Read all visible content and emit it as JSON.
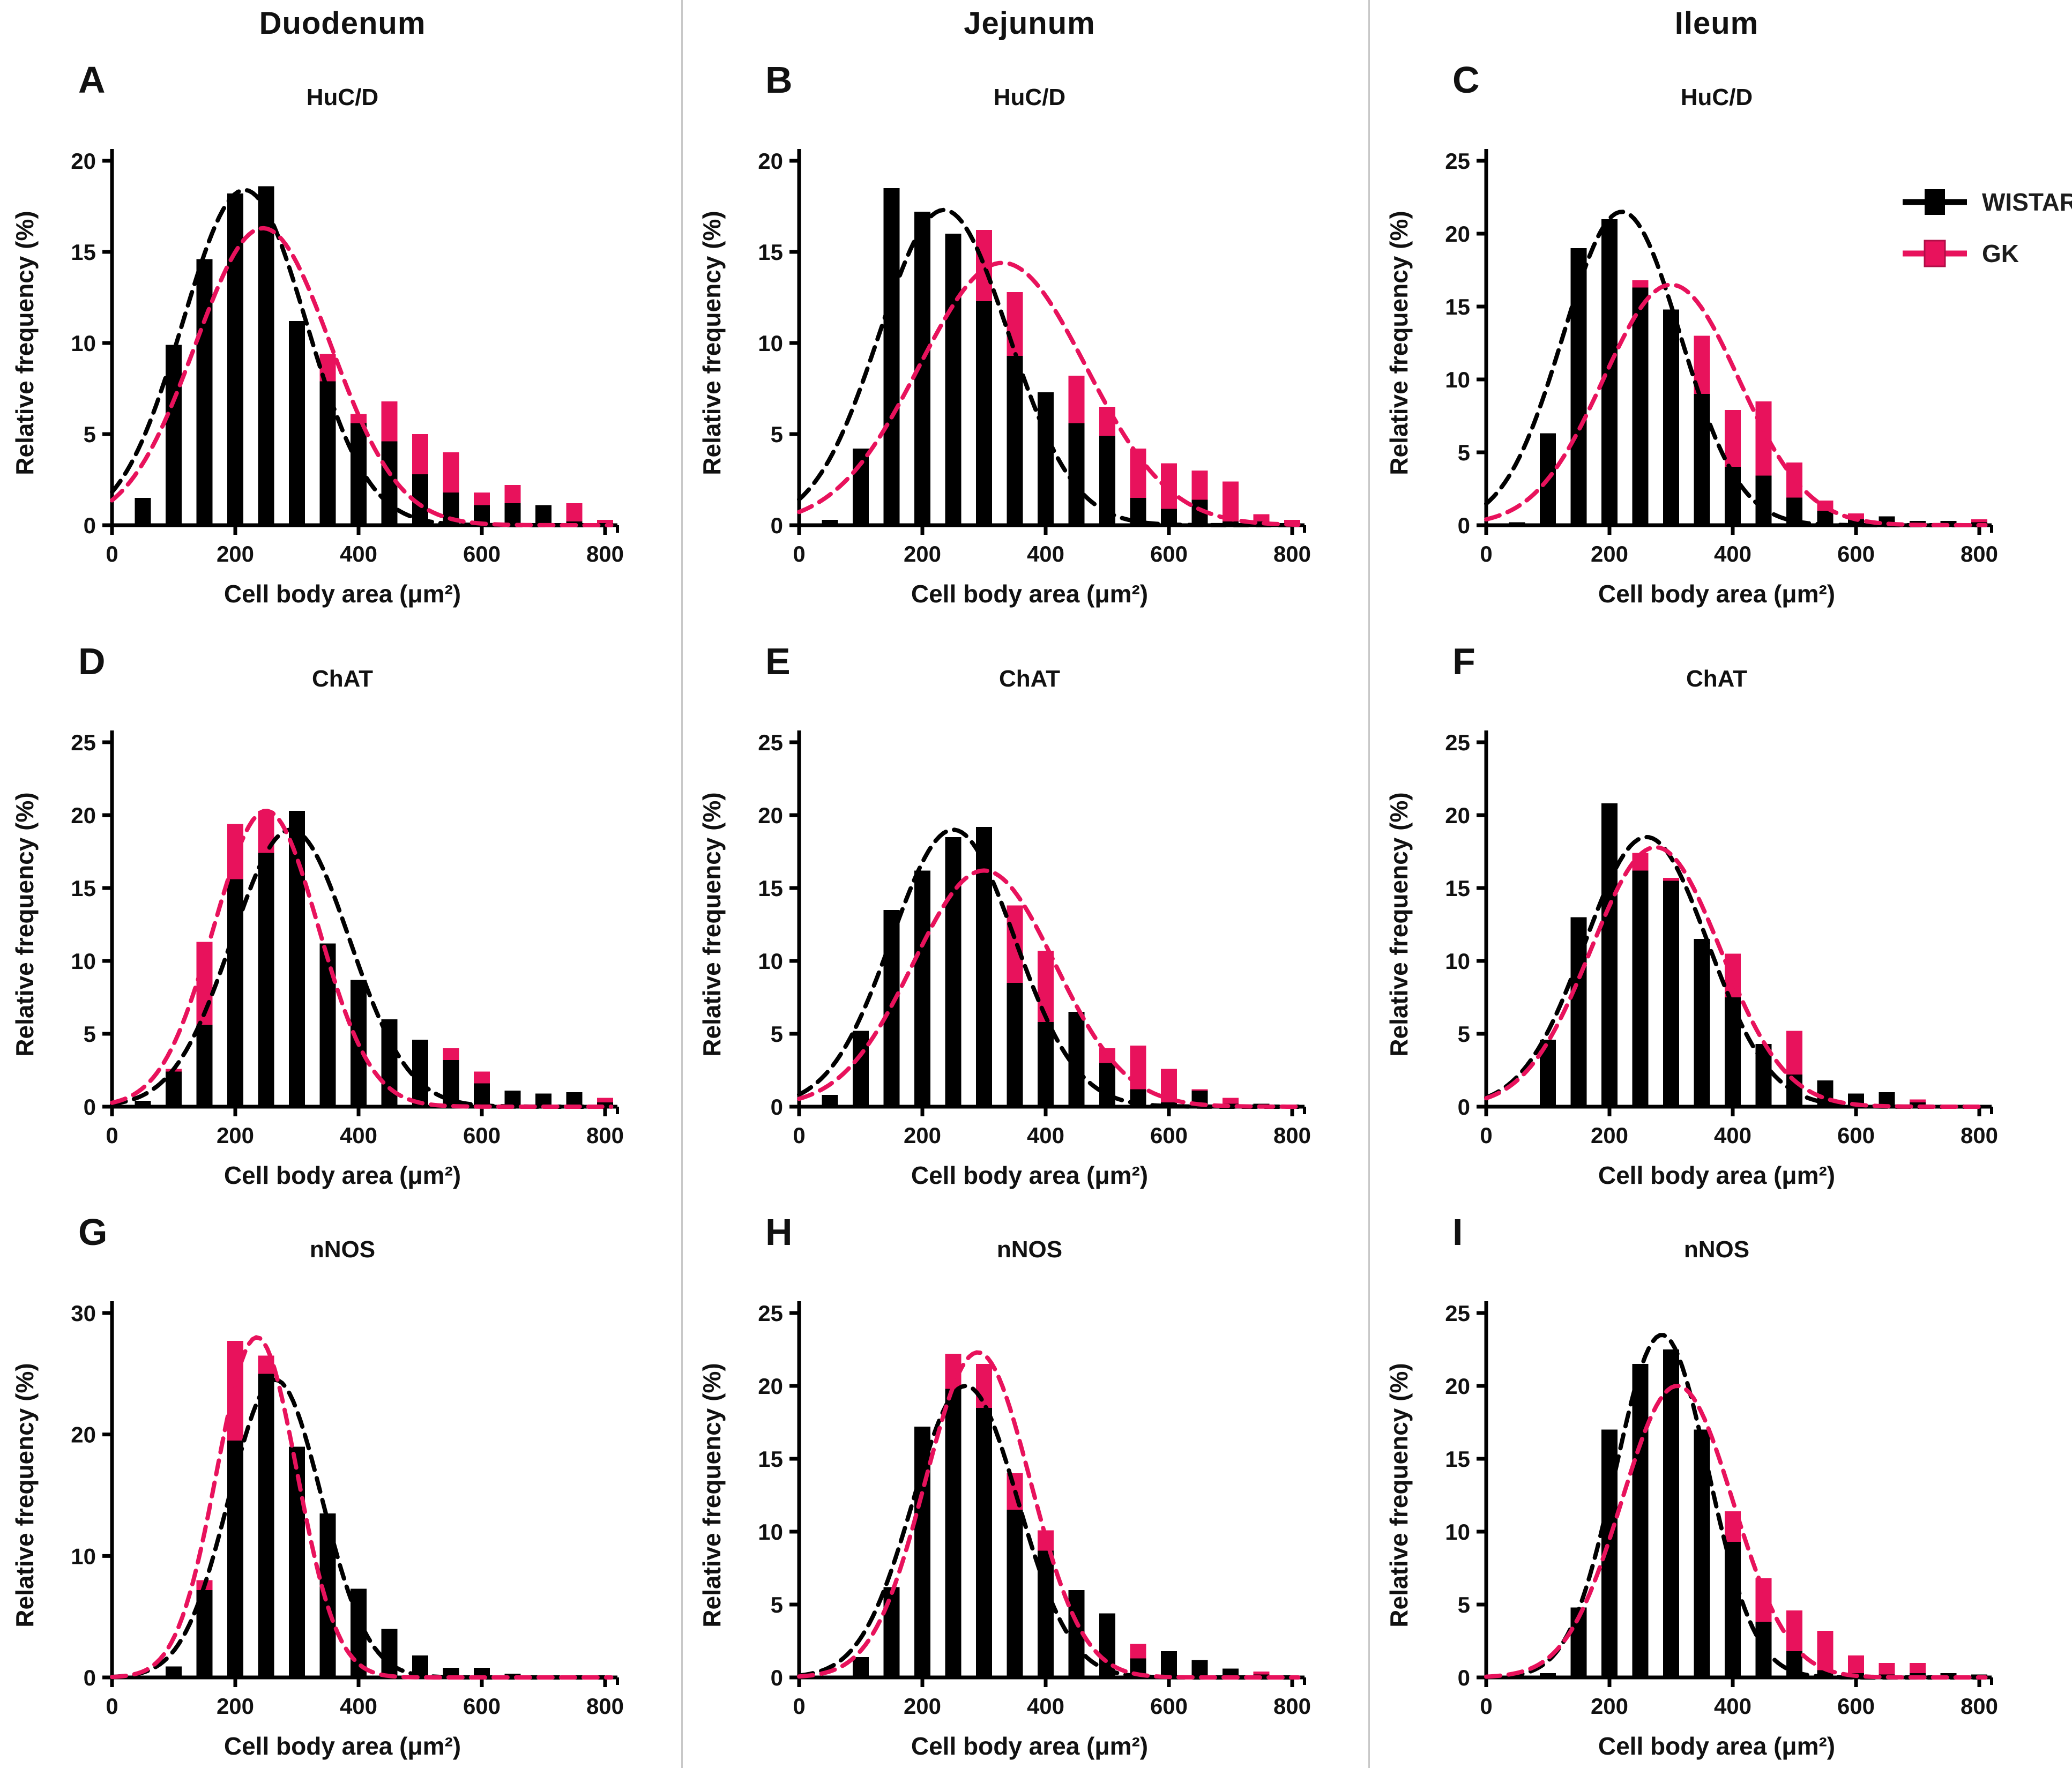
{
  "columns": [
    "Duodenum",
    "Jejunum",
    "Ileum"
  ],
  "legend": {
    "items": [
      {
        "label": "WISTAR",
        "color": "#000000"
      },
      {
        "label": "GK",
        "color": "#e8125c"
      }
    ]
  },
  "x_label": "Cell body area (μm²)",
  "y_label": "Relative frequency (%)",
  "accent_colors": {
    "wistar_black": "#000000",
    "gk_pink": "#e8125c",
    "divider_gray": "#c8c8c8"
  },
  "chart_data": [
    {
      "panel": "A",
      "region": "Duodenum",
      "marker": "HuC/D",
      "type": "bar",
      "bin_width": 50,
      "bin_centers": [
        50,
        100,
        150,
        200,
        250,
        300,
        350,
        400,
        450,
        500,
        550,
        600,
        650,
        700,
        750,
        800
      ],
      "xticks": [
        0,
        200,
        400,
        600,
        800
      ],
      "ylim": [
        0,
        20
      ],
      "yticks": [
        0,
        5,
        10,
        15,
        20
      ],
      "series": [
        {
          "name": "WISTAR",
          "color": "#000000",
          "values": [
            1.5,
            9.9,
            14.6,
            18.2,
            18.6,
            11.2,
            7.9,
            5.6,
            4.6,
            2.8,
            1.8,
            1.1,
            1.2,
            1.1,
            0.2,
            0.1
          ]
        },
        {
          "name": "GK",
          "color": "#e8125c",
          "values": [
            1.0,
            6.5,
            12.0,
            15.5,
            16.0,
            10.5,
            9.4,
            6.1,
            6.8,
            5.0,
            4.0,
            1.8,
            2.2,
            0.8,
            1.2,
            0.3
          ]
        }
      ],
      "fits": [
        {
          "name": "WISTAR",
          "color": "#000000",
          "mean": 215,
          "sd": 100,
          "peak": 18.4
        },
        {
          "name": "GK",
          "color": "#e8125c",
          "mean": 245,
          "sd": 110,
          "peak": 16.3
        }
      ]
    },
    {
      "panel": "B",
      "region": "Jejunum",
      "marker": "HuC/D",
      "type": "bar",
      "bin_width": 50,
      "bin_centers": [
        50,
        100,
        150,
        200,
        250,
        300,
        350,
        400,
        450,
        500,
        550,
        600,
        650,
        700,
        750,
        800
      ],
      "xticks": [
        0,
        200,
        400,
        600,
        800
      ],
      "ylim": [
        0,
        20
      ],
      "yticks": [
        0,
        5,
        10,
        15,
        20
      ],
      "series": [
        {
          "name": "WISTAR",
          "color": "#000000",
          "values": [
            0.3,
            4.2,
            18.5,
            17.2,
            16.0,
            12.3,
            9.3,
            7.3,
            5.6,
            4.9,
            1.5,
            0.9,
            1.4,
            0.2,
            0.2,
            0.1
          ]
        },
        {
          "name": "GK",
          "color": "#e8125c",
          "values": [
            0.2,
            3.5,
            8.0,
            12.0,
            14.0,
            16.2,
            12.8,
            7.0,
            8.2,
            6.5,
            4.2,
            3.4,
            3.0,
            2.4,
            0.6,
            0.3
          ]
        }
      ],
      "fits": [
        {
          "name": "WISTAR",
          "color": "#000000",
          "mean": 235,
          "sd": 105,
          "peak": 17.3
        },
        {
          "name": "GK",
          "color": "#e8125c",
          "mean": 330,
          "sd": 135,
          "peak": 14.4
        }
      ]
    },
    {
      "panel": "C",
      "region": "Ileum",
      "marker": "HuC/D",
      "type": "bar",
      "bin_width": 50,
      "bin_centers": [
        50,
        100,
        150,
        200,
        250,
        300,
        350,
        400,
        450,
        500,
        550,
        600,
        650,
        700,
        750,
        800
      ],
      "xticks": [
        0,
        200,
        400,
        600,
        800
      ],
      "ylim": [
        0,
        25
      ],
      "yticks": [
        0,
        5,
        10,
        15,
        20,
        25
      ],
      "series": [
        {
          "name": "WISTAR",
          "color": "#000000",
          "values": [
            0.2,
            6.3,
            19.0,
            21.0,
            16.3,
            14.8,
            9.0,
            4.0,
            3.4,
            1.9,
            1.0,
            0.4,
            0.6,
            0.3,
            0.3,
            0.2
          ]
        },
        {
          "name": "GK",
          "color": "#e8125c",
          "values": [
            0.1,
            4.0,
            10.0,
            15.0,
            16.8,
            14.0,
            13.0,
            7.9,
            8.5,
            4.3,
            1.7,
            0.8,
            0.4,
            0.2,
            0.2,
            0.4
          ]
        }
      ],
      "fits": [
        {
          "name": "WISTAR",
          "color": "#000000",
          "mean": 220,
          "sd": 95,
          "peak": 21.5
        },
        {
          "name": "GK",
          "color": "#e8125c",
          "mean": 300,
          "sd": 110,
          "peak": 16.5
        }
      ]
    },
    {
      "panel": "D",
      "region": "Duodenum",
      "marker": "ChAT",
      "type": "bar",
      "bin_width": 50,
      "bin_centers": [
        50,
        100,
        150,
        200,
        250,
        300,
        350,
        400,
        450,
        500,
        550,
        600,
        650,
        700,
        750,
        800
      ],
      "xticks": [
        0,
        200,
        400,
        600,
        800
      ],
      "ylim": [
        0,
        25
      ],
      "yticks": [
        0,
        5,
        10,
        15,
        20,
        25
      ],
      "series": [
        {
          "name": "WISTAR",
          "color": "#000000",
          "values": [
            0.4,
            2.4,
            5.6,
            15.6,
            17.4,
            20.3,
            11.2,
            8.7,
            6.0,
            4.6,
            3.2,
            1.6,
            1.1,
            0.9,
            1.0,
            0.3
          ]
        },
        {
          "name": "GK",
          "color": "#e8125c",
          "values": [
            0.3,
            2.6,
            11.3,
            19.4,
            20.3,
            18.0,
            10.0,
            7.0,
            4.0,
            2.3,
            4.0,
            2.4,
            0.5,
            0.3,
            0.3,
            0.6
          ]
        }
      ],
      "fits": [
        {
          "name": "WISTAR",
          "color": "#000000",
          "mean": 290,
          "sd": 95,
          "peak": 19.0
        },
        {
          "name": "GK",
          "color": "#e8125c",
          "mean": 250,
          "sd": 85,
          "peak": 20.3
        }
      ]
    },
    {
      "panel": "E",
      "region": "Jejunum",
      "marker": "ChAT",
      "type": "bar",
      "bin_width": 50,
      "bin_centers": [
        50,
        100,
        150,
        200,
        250,
        300,
        350,
        400,
        450,
        500,
        550,
        600,
        650,
        700,
        750,
        800
      ],
      "xticks": [
        0,
        200,
        400,
        600,
        800
      ],
      "ylim": [
        0,
        25
      ],
      "yticks": [
        0,
        5,
        10,
        15,
        20,
        25
      ],
      "series": [
        {
          "name": "WISTAR",
          "color": "#000000",
          "values": [
            0.8,
            5.2,
            13.5,
            16.2,
            18.5,
            19.2,
            8.5,
            5.8,
            6.5,
            3.0,
            1.2,
            0.3,
            1.1,
            0.2,
            0.2,
            0.1
          ]
        },
        {
          "name": "GK",
          "color": "#e8125c",
          "values": [
            0.5,
            4.0,
            10.0,
            13.0,
            15.5,
            16.0,
            13.8,
            10.7,
            5.4,
            4.0,
            4.2,
            2.6,
            1.2,
            0.6,
            0.2,
            0.1
          ]
        }
      ],
      "fits": [
        {
          "name": "WISTAR",
          "color": "#000000",
          "mean": 250,
          "sd": 100,
          "peak": 19.0
        },
        {
          "name": "GK",
          "color": "#e8125c",
          "mean": 300,
          "sd": 115,
          "peak": 16.2
        }
      ]
    },
    {
      "panel": "F",
      "region": "Ileum",
      "marker": "ChAT",
      "type": "bar",
      "bin_width": 50,
      "bin_centers": [
        50,
        100,
        150,
        200,
        250,
        300,
        350,
        400,
        450,
        500,
        550,
        600,
        650,
        700,
        750,
        800
      ],
      "xticks": [
        0,
        200,
        400,
        600,
        800
      ],
      "ylim": [
        0,
        25
      ],
      "yticks": [
        0,
        5,
        10,
        15,
        20,
        25
      ],
      "series": [
        {
          "name": "WISTAR",
          "color": "#000000",
          "values": [
            0.1,
            4.6,
            13.0,
            20.8,
            16.2,
            15.5,
            11.5,
            7.5,
            4.3,
            2.2,
            1.8,
            0.9,
            1.0,
            0.3,
            0.1,
            0.1
          ]
        },
        {
          "name": "GK",
          "color": "#e8125c",
          "values": [
            0.1,
            3.5,
            9.0,
            14.0,
            17.4,
            15.7,
            11.0,
            10.5,
            3.5,
            5.2,
            1.5,
            0.7,
            0.6,
            0.5,
            0.1,
            0.1
          ]
        }
      ],
      "fits": [
        {
          "name": "WISTAR",
          "color": "#000000",
          "mean": 260,
          "sd": 100,
          "peak": 18.5
        },
        {
          "name": "GK",
          "color": "#e8125c",
          "mean": 275,
          "sd": 105,
          "peak": 17.8
        }
      ]
    },
    {
      "panel": "G",
      "region": "Duodenum",
      "marker": "nNOS",
      "type": "bar",
      "bin_width": 50,
      "bin_centers": [
        50,
        100,
        150,
        200,
        250,
        300,
        350,
        400,
        450,
        500,
        550,
        600,
        650,
        700,
        750,
        800
      ],
      "xticks": [
        0,
        200,
        400,
        600,
        800
      ],
      "ylim": [
        0,
        30
      ],
      "yticks": [
        0,
        10,
        20,
        30
      ],
      "series": [
        {
          "name": "WISTAR",
          "color": "#000000",
          "values": [
            0,
            0.9,
            7.2,
            19.5,
            25.0,
            19.0,
            13.5,
            7.3,
            4.0,
            1.8,
            0.8,
            0.8,
            0.3,
            0,
            0,
            0
          ]
        },
        {
          "name": "GK",
          "color": "#e8125c",
          "values": [
            0,
            0.7,
            8.0,
            27.7,
            26.5,
            17.0,
            11.0,
            6.0,
            2.0,
            1.0,
            0.4,
            0.3,
            0.2,
            0,
            0,
            0
          ]
        }
      ],
      "fits": [
        {
          "name": "WISTAR",
          "color": "#000000",
          "mean": 265,
          "sd": 75,
          "peak": 24.5
        },
        {
          "name": "GK",
          "color": "#e8125c",
          "mean": 235,
          "sd": 65,
          "peak": 28.0
        }
      ]
    },
    {
      "panel": "H",
      "region": "Jejunum",
      "marker": "nNOS",
      "type": "bar",
      "bin_width": 50,
      "bin_centers": [
        50,
        100,
        150,
        200,
        250,
        300,
        350,
        400,
        450,
        500,
        550,
        600,
        650,
        700,
        750,
        800
      ],
      "xticks": [
        0,
        200,
        400,
        600,
        800
      ],
      "ylim": [
        0,
        25
      ],
      "yticks": [
        0,
        5,
        10,
        15,
        20,
        25
      ],
      "series": [
        {
          "name": "WISTAR",
          "color": "#000000",
          "values": [
            0,
            1.4,
            6.2,
            17.2,
            19.8,
            18.5,
            11.5,
            8.7,
            6.0,
            4.4,
            1.3,
            1.8,
            1.2,
            0.6,
            0.2,
            0.1
          ]
        },
        {
          "name": "GK",
          "color": "#e8125c",
          "values": [
            0,
            1.0,
            5.0,
            15.0,
            22.2,
            21.5,
            14.0,
            10.1,
            5.0,
            3.0,
            2.3,
            1.0,
            0.6,
            0.3,
            0.4,
            0.1
          ]
        }
      ],
      "fits": [
        {
          "name": "WISTAR",
          "color": "#000000",
          "mean": 270,
          "sd": 85,
          "peak": 20.0
        },
        {
          "name": "GK",
          "color": "#e8125c",
          "mean": 290,
          "sd": 85,
          "peak": 22.3
        }
      ]
    },
    {
      "panel": "I",
      "region": "Ileum",
      "marker": "nNOS",
      "type": "bar",
      "bin_width": 50,
      "bin_centers": [
        50,
        100,
        150,
        200,
        250,
        300,
        350,
        400,
        450,
        500,
        550,
        600,
        650,
        700,
        750,
        800
      ],
      "xticks": [
        0,
        200,
        400,
        600,
        800
      ],
      "ylim": [
        0,
        25
      ],
      "yticks": [
        0,
        5,
        10,
        15,
        20,
        25
      ],
      "series": [
        {
          "name": "WISTAR",
          "color": "#000000",
          "values": [
            0,
            0.3,
            4.8,
            17.0,
            21.5,
            22.5,
            17.0,
            9.3,
            3.8,
            1.8,
            0.5,
            0.3,
            0.2,
            0.3,
            0.3,
            0.2
          ]
        },
        {
          "name": "GK",
          "color": "#e8125c",
          "values": [
            0,
            0.3,
            4.5,
            13.0,
            18.0,
            20.0,
            15.0,
            11.4,
            6.8,
            4.6,
            3.2,
            1.5,
            1.0,
            1.0,
            0.2,
            0.2
          ]
        }
      ],
      "fits": [
        {
          "name": "WISTAR",
          "color": "#000000",
          "mean": 285,
          "sd": 75,
          "peak": 23.5
        },
        {
          "name": "GK",
          "color": "#e8125c",
          "mean": 310,
          "sd": 90,
          "peak": 20.0
        }
      ]
    }
  ]
}
